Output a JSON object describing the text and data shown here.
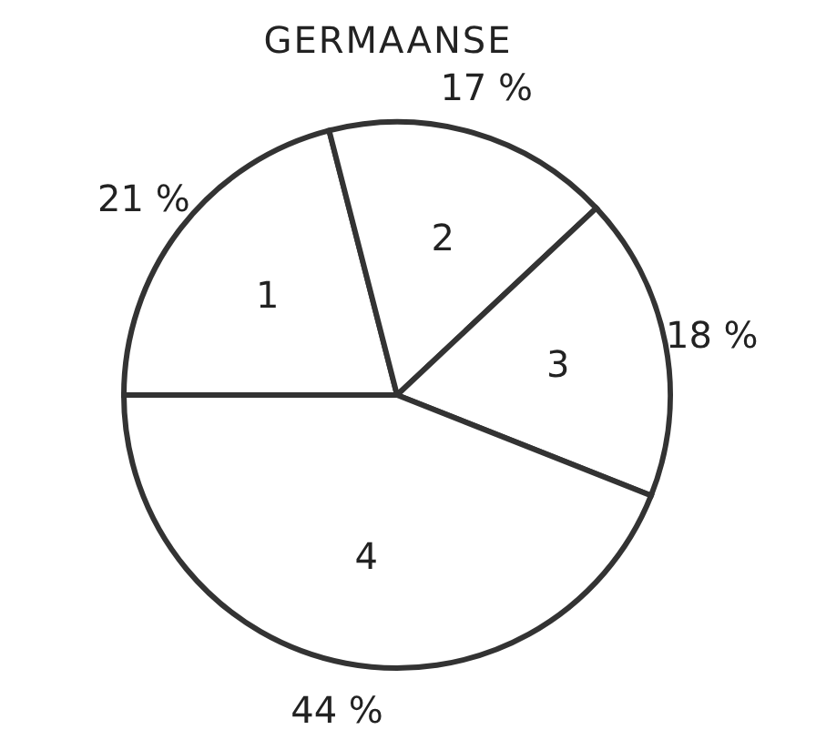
{
  "chart_data": {
    "type": "pie",
    "title": "GERMAANSE",
    "categories": [
      "1",
      "2",
      "3",
      "4"
    ],
    "values": [
      21,
      17,
      18,
      44
    ],
    "value_labels": [
      "21 %",
      "17 %",
      "18 %",
      "44 %"
    ],
    "colors": [
      "#ffffff",
      "#ffffff",
      "#ffffff",
      "#ffffff"
    ]
  }
}
